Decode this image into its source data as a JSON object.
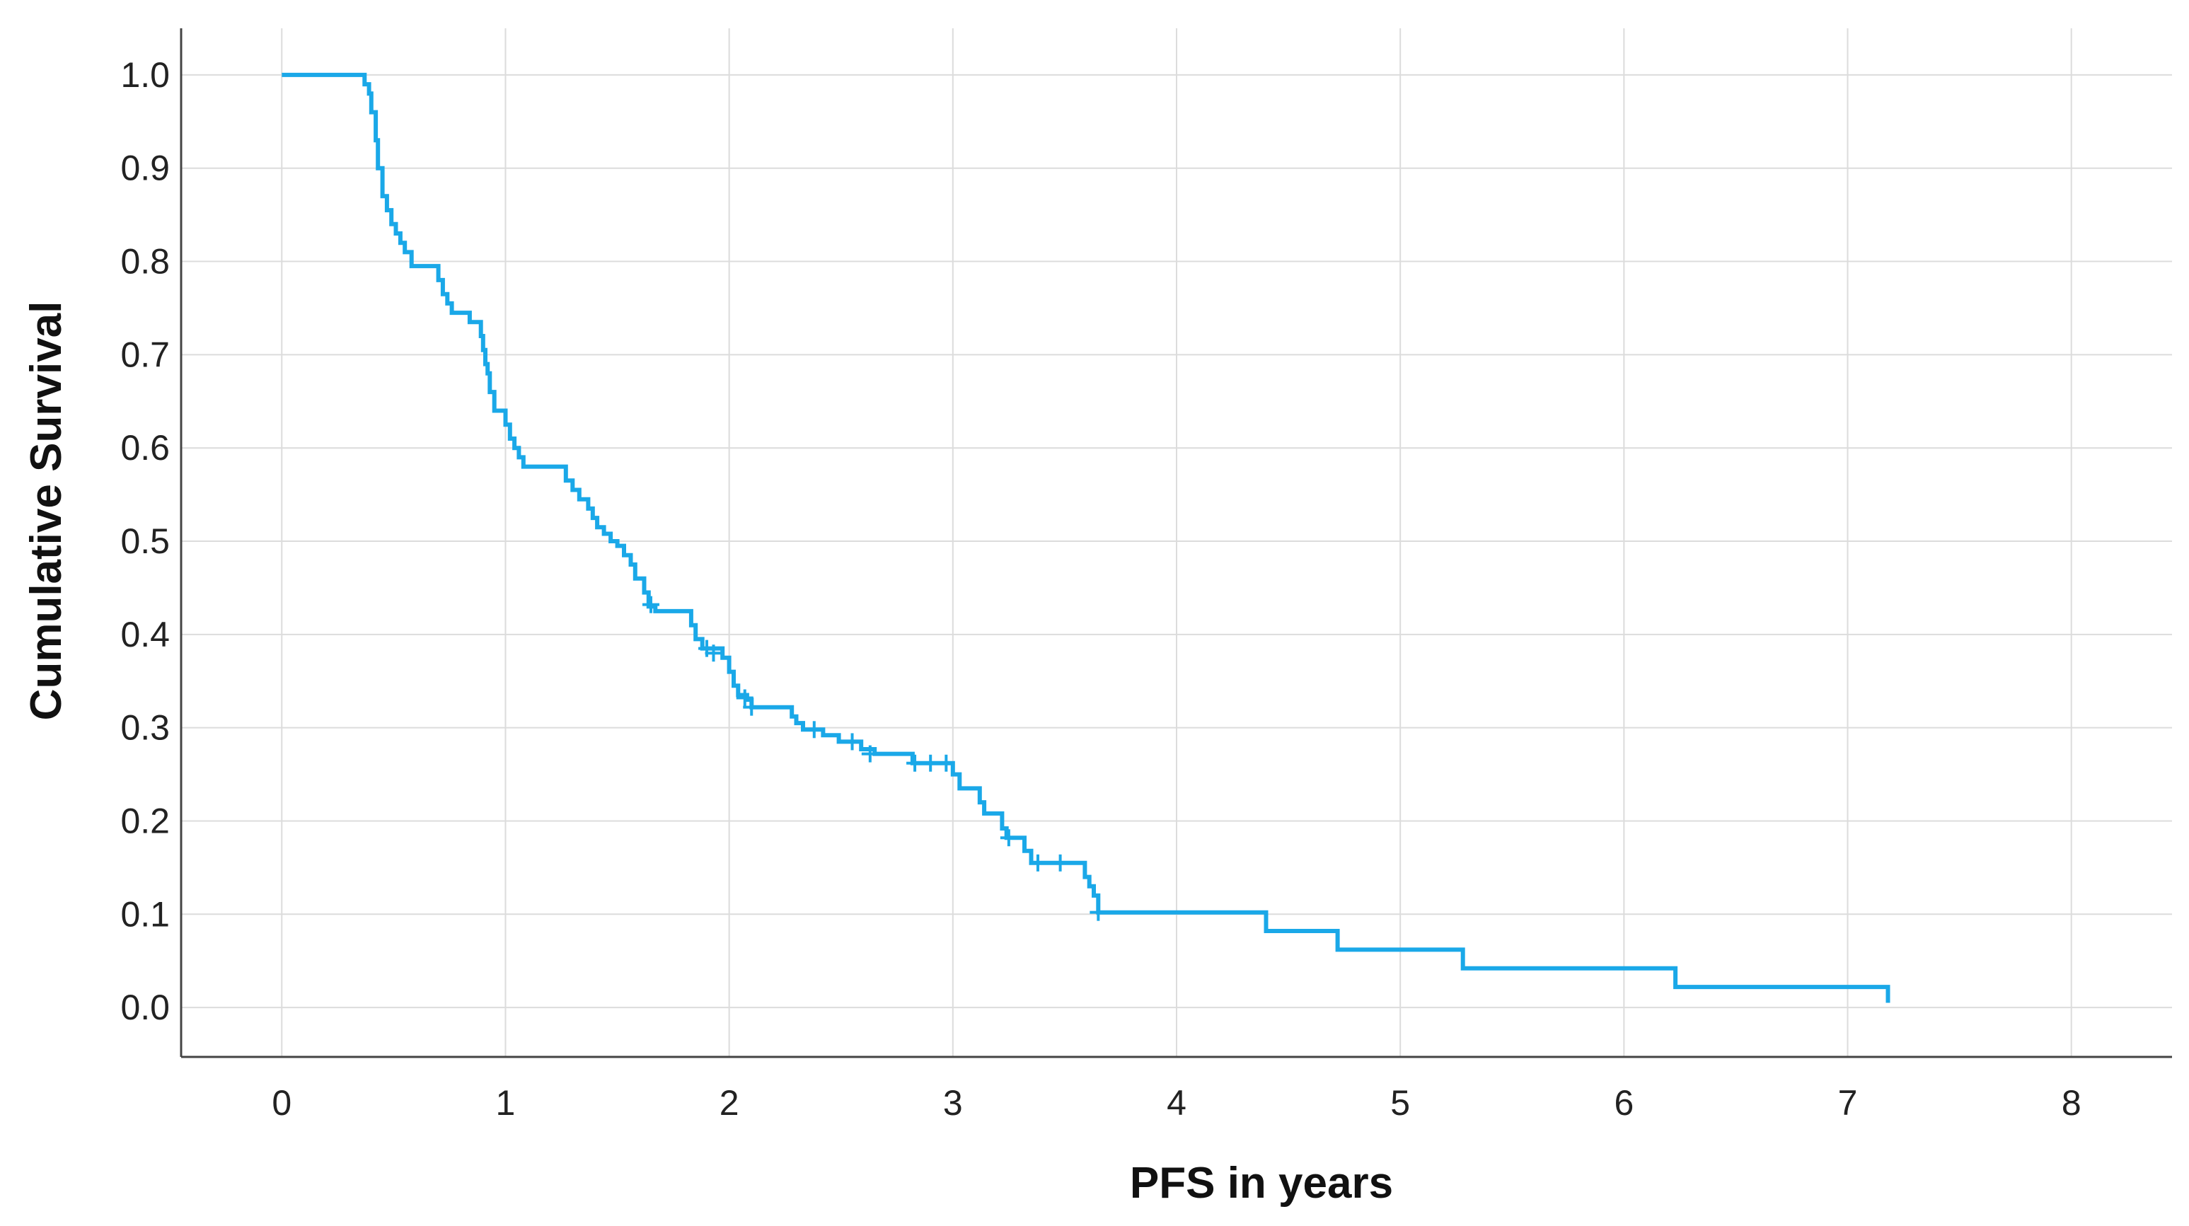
{
  "chart_data": {
    "type": "line",
    "subtype": "kaplan-meier",
    "title": "",
    "xlabel": "PFS in years",
    "ylabel": "Cumulative Survival",
    "xlim": [
      -0.45,
      8.45
    ],
    "ylim": [
      -0.053,
      1.05
    ],
    "xticks": [
      0,
      1,
      2,
      3,
      4,
      5,
      6,
      7,
      8
    ],
    "xtick_labels": [
      "0",
      "1",
      "2",
      "3",
      "4",
      "5",
      "6",
      "7",
      "8"
    ],
    "yticks": [
      0.0,
      0.1,
      0.2,
      0.3,
      0.4,
      0.5,
      0.6,
      0.7,
      0.8,
      0.9,
      1.0
    ],
    "ytick_labels": [
      "0.0",
      "0.1",
      "0.2",
      "0.3",
      "0.4",
      "0.5",
      "0.6",
      "0.7",
      "0.8",
      "0.9",
      "1.0"
    ],
    "grid": true,
    "legend": "none",
    "series": [
      {
        "color": "#1aa8e8",
        "step_points": [
          [
            0.0,
            1.0
          ],
          [
            0.36,
            1.0
          ],
          [
            0.37,
            0.99
          ],
          [
            0.39,
            0.98
          ],
          [
            0.4,
            0.96
          ],
          [
            0.42,
            0.93
          ],
          [
            0.43,
            0.9
          ],
          [
            0.45,
            0.87
          ],
          [
            0.47,
            0.855
          ],
          [
            0.49,
            0.84
          ],
          [
            0.51,
            0.83
          ],
          [
            0.53,
            0.82
          ],
          [
            0.55,
            0.81
          ],
          [
            0.58,
            0.795
          ],
          [
            0.68,
            0.795
          ],
          [
            0.7,
            0.78
          ],
          [
            0.72,
            0.765
          ],
          [
            0.74,
            0.755
          ],
          [
            0.76,
            0.745
          ],
          [
            0.82,
            0.745
          ],
          [
            0.84,
            0.735
          ],
          [
            0.88,
            0.735
          ],
          [
            0.89,
            0.72
          ],
          [
            0.9,
            0.705
          ],
          [
            0.91,
            0.69
          ],
          [
            0.92,
            0.68
          ],
          [
            0.93,
            0.66
          ],
          [
            0.95,
            0.64
          ],
          [
            0.99,
            0.64
          ],
          [
            1.0,
            0.625
          ],
          [
            1.02,
            0.61
          ],
          [
            1.04,
            0.6
          ],
          [
            1.06,
            0.59
          ],
          [
            1.08,
            0.58
          ],
          [
            1.25,
            0.58
          ],
          [
            1.27,
            0.565
          ],
          [
            1.3,
            0.555
          ],
          [
            1.33,
            0.545
          ],
          [
            1.37,
            0.535
          ],
          [
            1.39,
            0.525
          ],
          [
            1.41,
            0.515
          ],
          [
            1.44,
            0.508
          ],
          [
            1.47,
            0.5
          ],
          [
            1.5,
            0.495
          ],
          [
            1.53,
            0.485
          ],
          [
            1.56,
            0.475
          ],
          [
            1.58,
            0.46
          ],
          [
            1.62,
            0.445
          ],
          [
            1.64,
            0.43
          ],
          [
            1.67,
            0.425
          ],
          [
            1.81,
            0.425
          ],
          [
            1.83,
            0.41
          ],
          [
            1.85,
            0.395
          ],
          [
            1.88,
            0.385
          ],
          [
            1.94,
            0.385
          ],
          [
            1.97,
            0.375
          ],
          [
            2.0,
            0.36
          ],
          [
            2.02,
            0.345
          ],
          [
            2.04,
            0.335
          ],
          [
            2.08,
            0.33
          ],
          [
            2.1,
            0.322
          ],
          [
            2.26,
            0.322
          ],
          [
            2.28,
            0.312
          ],
          [
            2.3,
            0.305
          ],
          [
            2.33,
            0.298
          ],
          [
            2.4,
            0.298
          ],
          [
            2.42,
            0.292
          ],
          [
            2.47,
            0.292
          ],
          [
            2.49,
            0.285
          ],
          [
            2.57,
            0.285
          ],
          [
            2.59,
            0.277
          ],
          [
            2.63,
            0.277
          ],
          [
            2.65,
            0.272
          ],
          [
            2.8,
            0.272
          ],
          [
            2.82,
            0.262
          ],
          [
            2.98,
            0.262
          ],
          [
            3.0,
            0.25
          ],
          [
            3.03,
            0.235
          ],
          [
            3.1,
            0.235
          ],
          [
            3.12,
            0.22
          ],
          [
            3.14,
            0.208
          ],
          [
            3.2,
            0.208
          ],
          [
            3.22,
            0.192
          ],
          [
            3.24,
            0.182
          ],
          [
            3.3,
            0.182
          ],
          [
            3.32,
            0.168
          ],
          [
            3.35,
            0.155
          ],
          [
            3.57,
            0.155
          ],
          [
            3.59,
            0.14
          ],
          [
            3.61,
            0.13
          ],
          [
            3.63,
            0.12
          ],
          [
            3.65,
            0.102
          ],
          [
            4.4,
            0.102
          ],
          [
            4.4,
            0.082
          ],
          [
            4.72,
            0.082
          ],
          [
            4.72,
            0.062
          ],
          [
            5.28,
            0.062
          ],
          [
            5.28,
            0.042
          ],
          [
            6.23,
            0.042
          ],
          [
            6.23,
            0.022
          ],
          [
            7.18,
            0.022
          ],
          [
            7.18,
            0.005
          ]
        ],
        "censored": [
          [
            1.65,
            0.432
          ],
          [
            1.9,
            0.385
          ],
          [
            1.93,
            0.38
          ],
          [
            2.07,
            0.332
          ],
          [
            2.1,
            0.322
          ],
          [
            2.38,
            0.298
          ],
          [
            2.55,
            0.285
          ],
          [
            2.63,
            0.272
          ],
          [
            2.83,
            0.262
          ],
          [
            2.9,
            0.262
          ],
          [
            2.97,
            0.262
          ],
          [
            3.25,
            0.182
          ],
          [
            3.38,
            0.155
          ],
          [
            3.48,
            0.155
          ],
          [
            3.65,
            0.102
          ]
        ]
      }
    ]
  }
}
